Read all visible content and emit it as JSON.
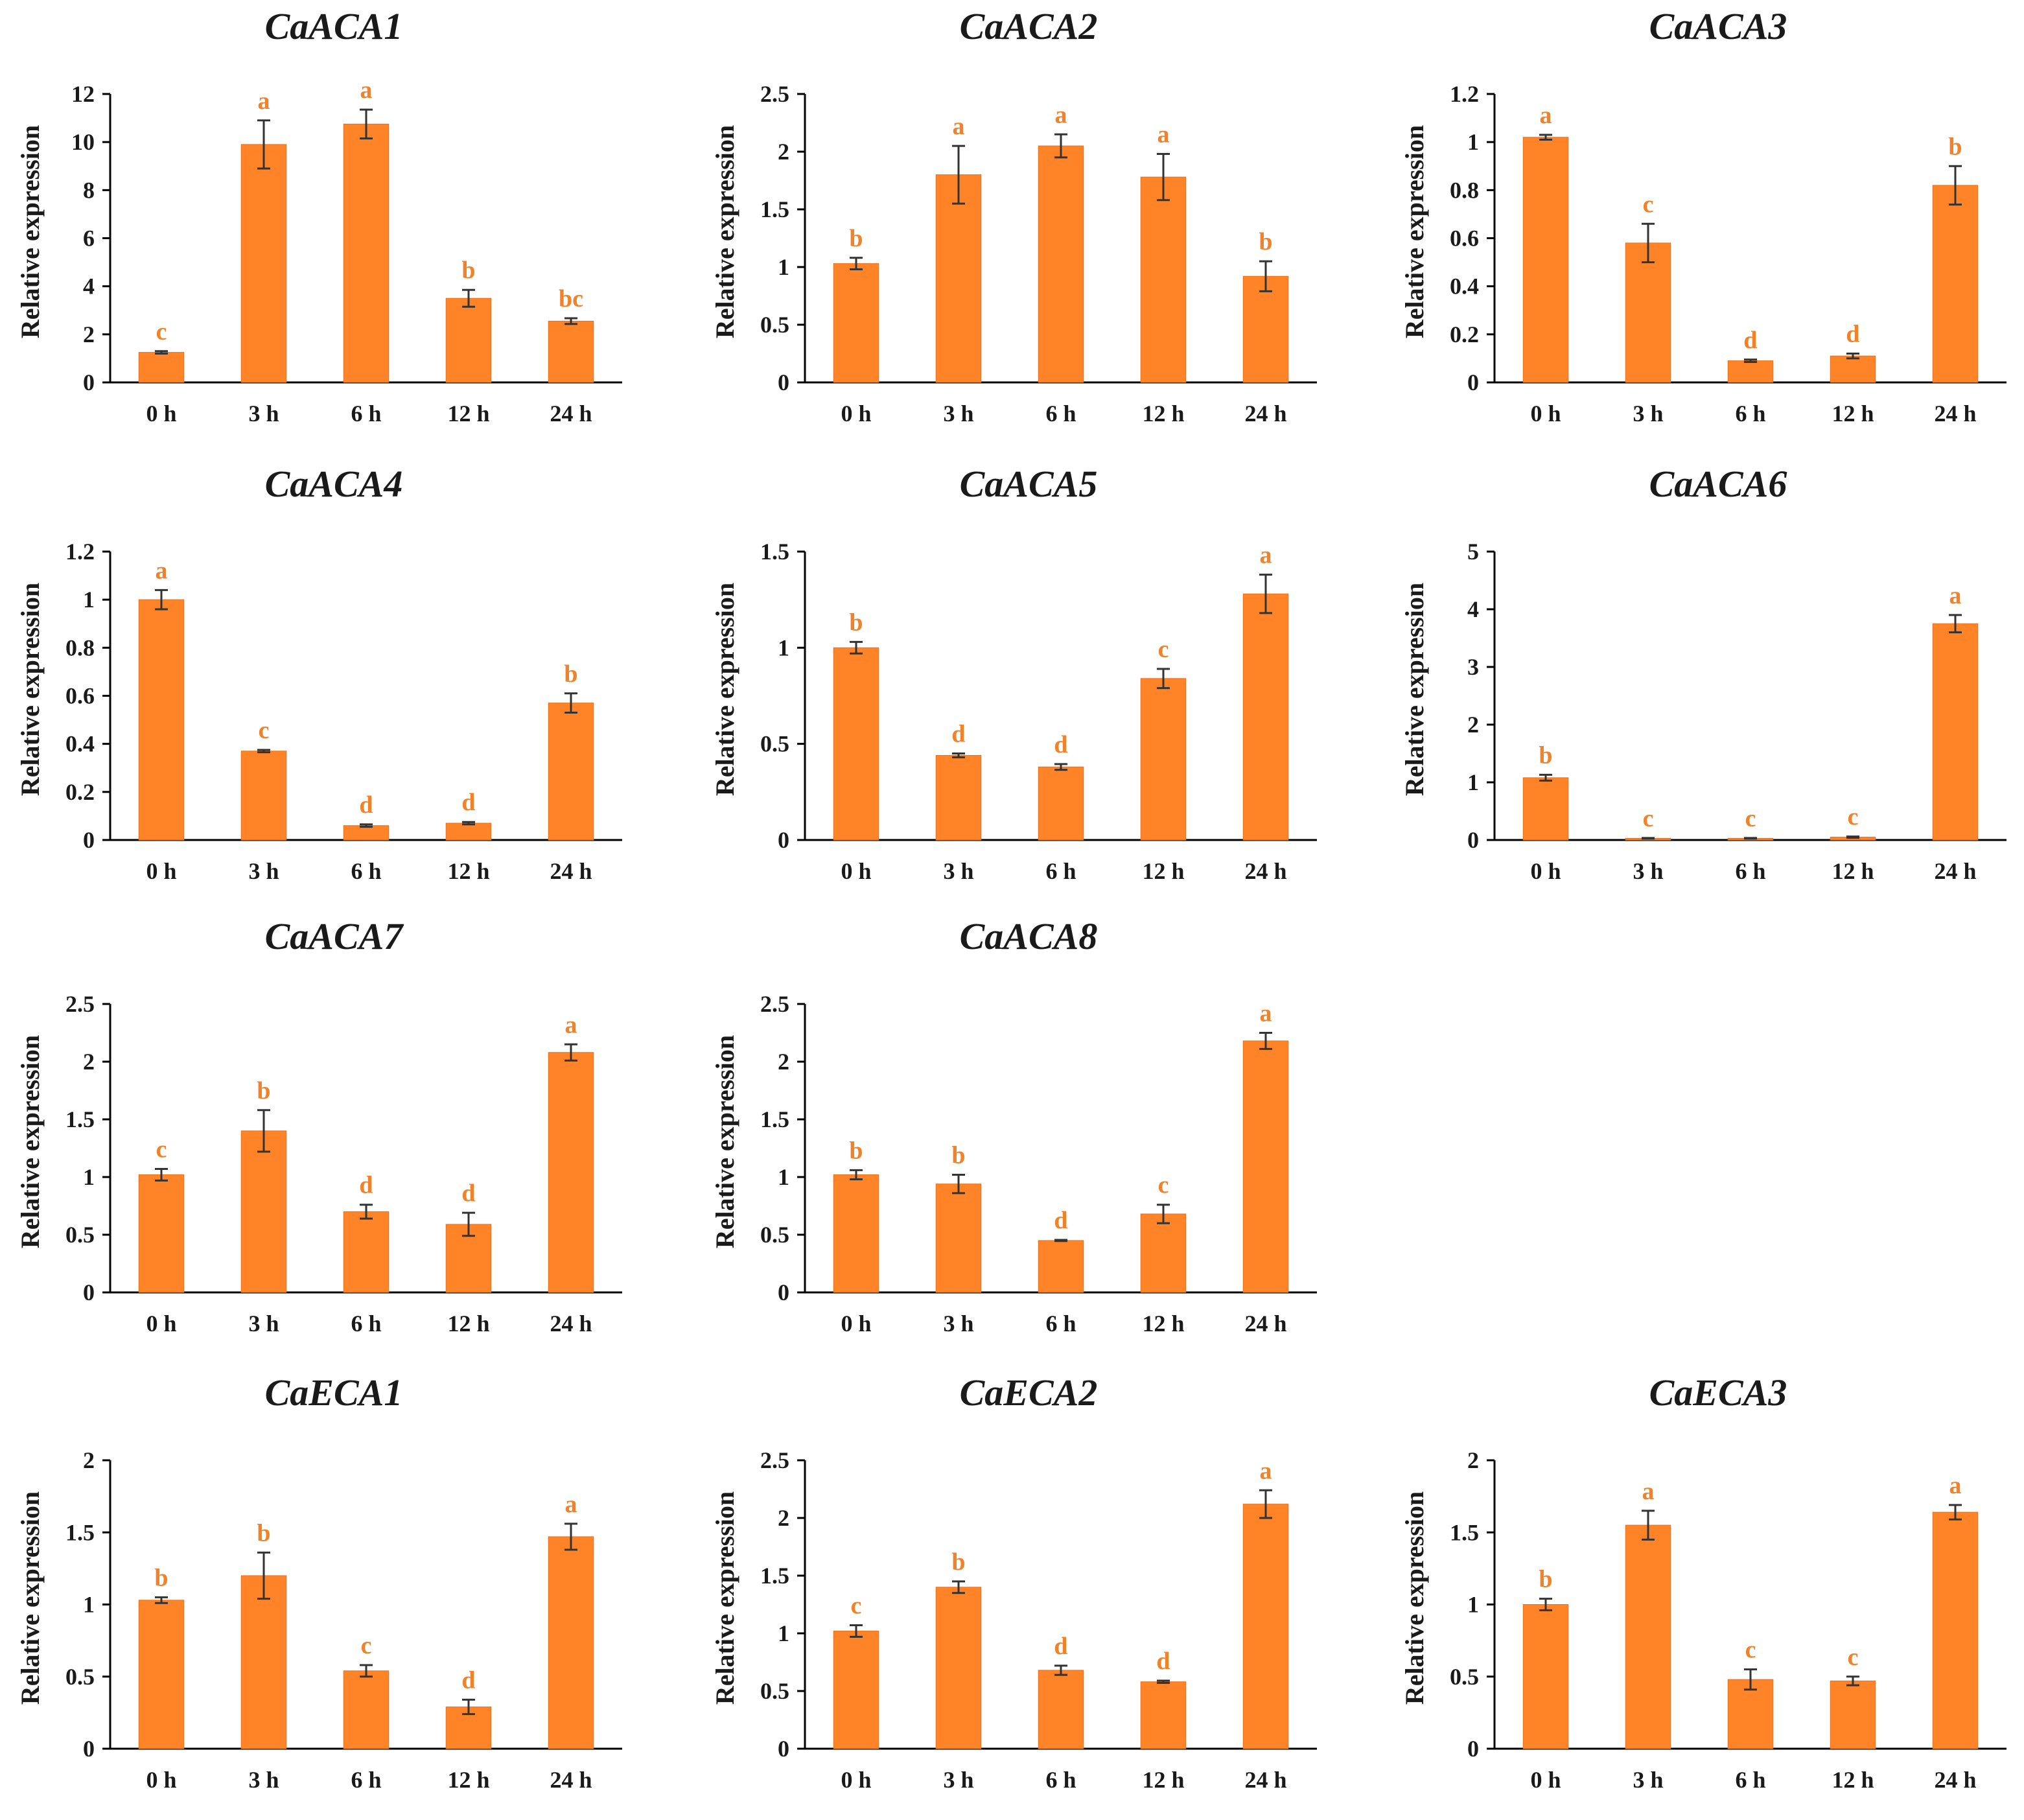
{
  "colors": {
    "bar": "#FF8427",
    "bar_edge": "#E8701A",
    "sig": "#F0822A",
    "axis": "#000000",
    "err": "#333333"
  },
  "chart_data": [
    {
      "type": "bar",
      "title": "CaACA1",
      "ylabel": "Relative expression",
      "categories": [
        "0 h",
        "3 h",
        "6 h",
        "12 h",
        "24 h"
      ],
      "values": [
        1.25,
        9.9,
        10.75,
        3.5,
        2.55
      ],
      "errors": [
        0.05,
        1.0,
        0.6,
        0.35,
        0.12
      ],
      "significance": [
        "c",
        "a",
        "a",
        "b",
        "bc"
      ],
      "yticks": [
        "0",
        "2",
        "4",
        "6",
        "8",
        "10",
        "12"
      ],
      "ylim": [
        0,
        12
      ]
    },
    {
      "type": "bar",
      "title": "CaACA2",
      "ylabel": "Relative expression",
      "categories": [
        "0 h",
        "3 h",
        "6 h",
        "12 h",
        "24 h"
      ],
      "values": [
        1.03,
        1.8,
        2.05,
        1.78,
        0.92
      ],
      "errors": [
        0.05,
        0.25,
        0.1,
        0.2,
        0.13
      ],
      "significance": [
        "b",
        "a",
        "a",
        "a",
        "b"
      ],
      "yticks": [
        "0",
        "0.5",
        "1",
        "1.5",
        "2",
        "2.5"
      ],
      "ylim": [
        0,
        2.5
      ]
    },
    {
      "type": "bar",
      "title": "CaACA3",
      "ylabel": "Relative expression",
      "categories": [
        "0 h",
        "3 h",
        "6 h",
        "12 h",
        "24 h"
      ],
      "values": [
        1.02,
        0.58,
        0.09,
        0.11,
        0.82
      ],
      "errors": [
        0.01,
        0.08,
        0.005,
        0.01,
        0.08
      ],
      "significance": [
        "a",
        "c",
        "d",
        "d",
        "b"
      ],
      "yticks": [
        "0",
        "0.2",
        "0.4",
        "0.6",
        "0.8",
        "1",
        "1.2"
      ],
      "ylim": [
        0,
        1.2
      ]
    },
    {
      "type": "bar",
      "title": "CaACA4",
      "ylabel": "Relative expression",
      "categories": [
        "0 h",
        "3 h",
        "6 h",
        "12 h",
        "24 h"
      ],
      "values": [
        1.0,
        0.37,
        0.06,
        0.07,
        0.57
      ],
      "errors": [
        0.04,
        0.005,
        0.005,
        0.005,
        0.04
      ],
      "significance": [
        "a",
        "c",
        "d",
        "d",
        "b"
      ],
      "yticks": [
        "0",
        "0.2",
        "0.4",
        "0.6",
        "0.8",
        "1",
        "1.2"
      ],
      "ylim": [
        0,
        1.2
      ]
    },
    {
      "type": "bar",
      "title": "CaACA5",
      "ylabel": "Relative expression",
      "categories": [
        "0 h",
        "3 h",
        "6 h",
        "12 h",
        "24 h"
      ],
      "values": [
        1.0,
        0.44,
        0.38,
        0.84,
        1.28
      ],
      "errors": [
        0.03,
        0.01,
        0.015,
        0.05,
        0.1
      ],
      "significance": [
        "b",
        "d",
        "d",
        "c",
        "a"
      ],
      "yticks": [
        "0",
        "0.5",
        "1",
        "1.5"
      ],
      "ylim": [
        0,
        1.5
      ]
    },
    {
      "type": "bar",
      "title": "CaACA6",
      "ylabel": "Relative expression",
      "categories": [
        "0 h",
        "3 h",
        "6 h",
        "12 h",
        "24 h"
      ],
      "values": [
        1.08,
        0.03,
        0.03,
        0.05,
        3.75
      ],
      "errors": [
        0.05,
        0.005,
        0.005,
        0.01,
        0.15
      ],
      "significance": [
        "b",
        "c",
        "c",
        "c",
        "a"
      ],
      "yticks": [
        "0",
        "1",
        "2",
        "3",
        "4",
        "5"
      ],
      "ylim": [
        0,
        5
      ]
    },
    {
      "type": "bar",
      "title": "CaACA7",
      "ylabel": "Relative expression",
      "categories": [
        "0 h",
        "3 h",
        "6 h",
        "12 h",
        "24 h"
      ],
      "values": [
        1.02,
        1.4,
        0.7,
        0.59,
        2.08
      ],
      "errors": [
        0.05,
        0.18,
        0.06,
        0.1,
        0.07
      ],
      "significance": [
        "c",
        "b",
        "d",
        "d",
        "a"
      ],
      "yticks": [
        "0",
        "0.5",
        "1",
        "1.5",
        "2",
        "2.5"
      ],
      "ylim": [
        0,
        2.5
      ]
    },
    {
      "type": "bar",
      "title": "CaACA8",
      "ylabel": "Relative expression",
      "categories": [
        "0 h",
        "3 h",
        "6 h",
        "12 h",
        "24 h"
      ],
      "values": [
        1.02,
        0.94,
        0.45,
        0.68,
        2.18
      ],
      "errors": [
        0.04,
        0.08,
        0.005,
        0.08,
        0.07
      ],
      "significance": [
        "b",
        "b",
        "d",
        "c",
        "a"
      ],
      "yticks": [
        "0",
        "0.5",
        "1",
        "1.5",
        "2",
        "2.5"
      ],
      "ylim": [
        0,
        2.5
      ]
    },
    null,
    {
      "type": "bar",
      "title": "CaECA1",
      "ylabel": "Relative expression",
      "categories": [
        "0 h",
        "3 h",
        "6 h",
        "12 h",
        "24 h"
      ],
      "values": [
        1.03,
        1.2,
        0.54,
        0.29,
        1.47
      ],
      "errors": [
        0.02,
        0.16,
        0.04,
        0.05,
        0.09
      ],
      "significance": [
        "b",
        "b",
        "c",
        "d",
        "a"
      ],
      "yticks": [
        "0",
        "0.5",
        "1",
        "1.5",
        "2"
      ],
      "ylim": [
        0,
        2
      ]
    },
    {
      "type": "bar",
      "title": "CaECA2",
      "ylabel": "Relative expression",
      "categories": [
        "0 h",
        "3 h",
        "6 h",
        "12 h",
        "24 h"
      ],
      "values": [
        1.02,
        1.4,
        0.68,
        0.58,
        2.12
      ],
      "errors": [
        0.05,
        0.05,
        0.04,
        0.01,
        0.12
      ],
      "significance": [
        "c",
        "b",
        "d",
        "d",
        "a"
      ],
      "yticks": [
        "0",
        "0.5",
        "1",
        "1.5",
        "2",
        "2.5"
      ],
      "ylim": [
        0,
        2.5
      ]
    },
    {
      "type": "bar",
      "title": "CaECA3",
      "ylabel": "Relative expression",
      "categories": [
        "0 h",
        "3 h",
        "6 h",
        "12 h",
        "24 h"
      ],
      "values": [
        1.0,
        1.55,
        0.48,
        0.47,
        1.64
      ],
      "errors": [
        0.04,
        0.1,
        0.07,
        0.03,
        0.05
      ],
      "significance": [
        "b",
        "a",
        "c",
        "c",
        "a"
      ],
      "yticks": [
        "0",
        "0.5",
        "1",
        "1.5",
        "2"
      ],
      "ylim": [
        0,
        2
      ]
    }
  ]
}
